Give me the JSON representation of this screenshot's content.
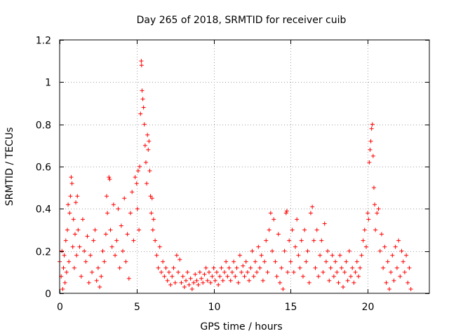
{
  "chart_data": {
    "type": "scatter",
    "title": "Day 265 of 2018, SRMTID for receiver cuib",
    "xlabel": "GPS time / hours",
    "ylabel": "SRMTID / TECUs",
    "xlim": [
      0,
      24
    ],
    "ylim": [
      0,
      1.2
    ],
    "xticks": [
      0,
      5,
      10,
      15,
      20
    ],
    "xtick_labels": [
      "0",
      "5",
      "10",
      "15",
      "20"
    ],
    "yticks": [
      0,
      0.2,
      0.4,
      0.6,
      0.8,
      1,
      1.2
    ],
    "ytick_labels": [
      "0",
      "0.2",
      "0.4",
      "0.6",
      "0.8",
      "1",
      "1.2"
    ],
    "grid": true,
    "marker": "+",
    "color": "#ff0000",
    "series": [
      {
        "name": "SRMTID",
        "points": [
          [
            0.0,
            0.15
          ],
          [
            0.1,
            0.08
          ],
          [
            0.15,
            0.2
          ],
          [
            0.2,
            0.02
          ],
          [
            0.25,
            0.12
          ],
          [
            0.3,
            0.18
          ],
          [
            0.35,
            0.05
          ],
          [
            0.4,
            0.25
          ],
          [
            0.45,
            0.1
          ],
          [
            0.5,
            0.3
          ],
          [
            0.55,
            0.42
          ],
          [
            0.6,
            0.15
          ],
          [
            0.65,
            0.38
          ],
          [
            0.7,
            0.46
          ],
          [
            0.75,
            0.55
          ],
          [
            0.8,
            0.52
          ],
          [
            0.85,
            0.22
          ],
          [
            0.9,
            0.35
          ],
          [
            0.95,
            0.12
          ],
          [
            1.0,
            0.28
          ],
          [
            1.05,
            0.43
          ],
          [
            1.1,
            0.18
          ],
          [
            1.15,
            0.46
          ],
          [
            1.2,
            0.3
          ],
          [
            1.3,
            0.22
          ],
          [
            1.4,
            0.08
          ],
          [
            1.5,
            0.35
          ],
          [
            1.6,
            0.2
          ],
          [
            1.7,
            0.15
          ],
          [
            1.8,
            0.27
          ],
          [
            1.9,
            0.05
          ],
          [
            2.0,
            0.18
          ],
          [
            2.1,
            0.1
          ],
          [
            2.2,
            0.25
          ],
          [
            2.3,
            0.3
          ],
          [
            2.4,
            0.06
          ],
          [
            2.5,
            0.12
          ],
          [
            2.6,
            0.03
          ],
          [
            2.7,
            0.08
          ],
          [
            2.8,
            0.2
          ],
          [
            2.9,
            0.15
          ],
          [
            3.0,
            0.28
          ],
          [
            3.05,
            0.46
          ],
          [
            3.1,
            0.38
          ],
          [
            3.2,
            0.55
          ],
          [
            3.25,
            0.54
          ],
          [
            3.3,
            0.3
          ],
          [
            3.4,
            0.22
          ],
          [
            3.5,
            0.42
          ],
          [
            3.6,
            0.18
          ],
          [
            3.7,
            0.25
          ],
          [
            3.8,
            0.4
          ],
          [
            3.9,
            0.12
          ],
          [
            4.0,
            0.32
          ],
          [
            4.1,
            0.2
          ],
          [
            4.2,
            0.45
          ],
          [
            4.3,
            0.15
          ],
          [
            4.4,
            0.28
          ],
          [
            4.5,
            0.07
          ],
          [
            4.6,
            0.38
          ],
          [
            4.7,
            0.48
          ],
          [
            4.8,
            0.25
          ],
          [
            4.9,
            0.55
          ],
          [
            5.0,
            0.52
          ],
          [
            5.05,
            0.4
          ],
          [
            5.1,
            0.58
          ],
          [
            5.15,
            0.3
          ],
          [
            5.2,
            0.6
          ],
          [
            5.25,
            0.85
          ],
          [
            5.3,
            1.1
          ],
          [
            5.32,
            1.08
          ],
          [
            5.35,
            0.96
          ],
          [
            5.4,
            0.92
          ],
          [
            5.45,
            0.88
          ],
          [
            5.5,
            0.8
          ],
          [
            5.55,
            0.7
          ],
          [
            5.6,
            0.62
          ],
          [
            5.65,
            0.52
          ],
          [
            5.7,
            0.75
          ],
          [
            5.75,
            0.68
          ],
          [
            5.8,
            0.72
          ],
          [
            5.85,
            0.58
          ],
          [
            5.9,
            0.46
          ],
          [
            5.95,
            0.38
          ],
          [
            6.0,
            0.45
          ],
          [
            6.05,
            0.3
          ],
          [
            6.1,
            0.35
          ],
          [
            6.2,
            0.25
          ],
          [
            6.3,
            0.18
          ],
          [
            6.4,
            0.12
          ],
          [
            6.5,
            0.22
          ],
          [
            6.6,
            0.1
          ],
          [
            6.7,
            0.15
          ],
          [
            6.8,
            0.08
          ],
          [
            6.9,
            0.12
          ],
          [
            7.0,
            0.06
          ],
          [
            7.1,
            0.1
          ],
          [
            7.2,
            0.04
          ],
          [
            7.3,
            0.08
          ],
          [
            7.4,
            0.12
          ],
          [
            7.5,
            0.05
          ],
          [
            7.6,
            0.18
          ],
          [
            7.7,
            0.1
          ],
          [
            7.8,
            0.16
          ],
          [
            7.9,
            0.05
          ],
          [
            8.0,
            0.08
          ],
          [
            8.1,
            0.03
          ],
          [
            8.2,
            0.06
          ],
          [
            8.3,
            0.1
          ],
          [
            8.4,
            0.04
          ],
          [
            8.5,
            0.07
          ],
          [
            8.6,
            0.02
          ],
          [
            8.7,
            0.05
          ],
          [
            8.8,
            0.09
          ],
          [
            8.9,
            0.06
          ],
          [
            9.0,
            0.04
          ],
          [
            9.1,
            0.1
          ],
          [
            9.2,
            0.07
          ],
          [
            9.3,
            0.05
          ],
          [
            9.4,
            0.09
          ],
          [
            9.5,
            0.12
          ],
          [
            9.6,
            0.06
          ],
          [
            9.7,
            0.1
          ],
          [
            9.8,
            0.05
          ],
          [
            9.9,
            0.08
          ],
          [
            10.0,
            0.12
          ],
          [
            10.1,
            0.06
          ],
          [
            10.2,
            0.1
          ],
          [
            10.3,
            0.04
          ],
          [
            10.4,
            0.08
          ],
          [
            10.5,
            0.12
          ],
          [
            10.6,
            0.06
          ],
          [
            10.7,
            0.1
          ],
          [
            10.8,
            0.15
          ],
          [
            10.9,
            0.08
          ],
          [
            11.0,
            0.12
          ],
          [
            11.1,
            0.06
          ],
          [
            11.2,
            0.1
          ],
          [
            11.3,
            0.15
          ],
          [
            11.4,
            0.08
          ],
          [
            11.5,
            0.12
          ],
          [
            11.6,
            0.05
          ],
          [
            11.7,
            0.18
          ],
          [
            11.8,
            0.1
          ],
          [
            11.9,
            0.13
          ],
          [
            12.0,
            0.08
          ],
          [
            12.1,
            0.15
          ],
          [
            12.2,
            0.1
          ],
          [
            12.3,
            0.06
          ],
          [
            12.4,
            0.12
          ],
          [
            12.5,
            0.2
          ],
          [
            12.6,
            0.08
          ],
          [
            12.7,
            0.15
          ],
          [
            12.8,
            0.1
          ],
          [
            12.9,
            0.22
          ],
          [
            13.0,
            0.12
          ],
          [
            13.1,
            0.18
          ],
          [
            13.2,
            0.06
          ],
          [
            13.3,
            0.15
          ],
          [
            13.4,
            0.25
          ],
          [
            13.5,
            0.1
          ],
          [
            13.6,
            0.3
          ],
          [
            13.7,
            0.38
          ],
          [
            13.8,
            0.2
          ],
          [
            13.9,
            0.35
          ],
          [
            14.0,
            0.15
          ],
          [
            14.1,
            0.08
          ],
          [
            14.2,
            0.28
          ],
          [
            14.3,
            0.05
          ],
          [
            14.4,
            0.12
          ],
          [
            14.5,
            0.02
          ],
          [
            14.6,
            0.2
          ],
          [
            14.7,
            0.38
          ],
          [
            14.75,
            0.39
          ],
          [
            14.8,
            0.1
          ],
          [
            14.9,
            0.25
          ],
          [
            15.0,
            0.15
          ],
          [
            15.1,
            0.3
          ],
          [
            15.2,
            0.1
          ],
          [
            15.3,
            0.22
          ],
          [
            15.4,
            0.35
          ],
          [
            15.5,
            0.18
          ],
          [
            15.6,
            0.12
          ],
          [
            15.7,
            0.25
          ],
          [
            15.8,
            0.08
          ],
          [
            15.9,
            0.3
          ],
          [
            16.0,
            0.15
          ],
          [
            16.1,
            0.2
          ],
          [
            16.2,
            0.05
          ],
          [
            16.3,
            0.38
          ],
          [
            16.4,
            0.41
          ],
          [
            16.5,
            0.25
          ],
          [
            16.6,
            0.12
          ],
          [
            16.7,
            0.3
          ],
          [
            16.8,
            0.08
          ],
          [
            16.9,
            0.18
          ],
          [
            17.0,
            0.25
          ],
          [
            17.1,
            0.1
          ],
          [
            17.2,
            0.33
          ],
          [
            17.3,
            0.15
          ],
          [
            17.4,
            0.2
          ],
          [
            17.5,
            0.06
          ],
          [
            17.6,
            0.12
          ],
          [
            17.7,
            0.18
          ],
          [
            17.8,
            0.08
          ],
          [
            17.9,
            0.15
          ],
          [
            18.0,
            0.1
          ],
          [
            18.1,
            0.05
          ],
          [
            18.2,
            0.18
          ],
          [
            18.3,
            0.12
          ],
          [
            18.4,
            0.03
          ],
          [
            18.5,
            0.1
          ],
          [
            18.6,
            0.15
          ],
          [
            18.7,
            0.06
          ],
          [
            18.8,
            0.2
          ],
          [
            18.9,
            0.08
          ],
          [
            19.0,
            0.12
          ],
          [
            19.1,
            0.05
          ],
          [
            19.2,
            0.1
          ],
          [
            19.3,
            0.15
          ],
          [
            19.4,
            0.08
          ],
          [
            19.5,
            0.12
          ],
          [
            19.6,
            0.18
          ],
          [
            19.7,
            0.25
          ],
          [
            19.8,
            0.3
          ],
          [
            19.9,
            0.22
          ],
          [
            20.0,
            0.38
          ],
          [
            20.05,
            0.35
          ],
          [
            20.1,
            0.62
          ],
          [
            20.15,
            0.68
          ],
          [
            20.2,
            0.72
          ],
          [
            20.25,
            0.78
          ],
          [
            20.3,
            0.8
          ],
          [
            20.35,
            0.65
          ],
          [
            20.4,
            0.5
          ],
          [
            20.45,
            0.42
          ],
          [
            20.5,
            0.3
          ],
          [
            20.6,
            0.38
          ],
          [
            20.7,
            0.4
          ],
          [
            20.8,
            0.2
          ],
          [
            20.9,
            0.28
          ],
          [
            21.0,
            0.12
          ],
          [
            21.1,
            0.22
          ],
          [
            21.2,
            0.05
          ],
          [
            21.3,
            0.15
          ],
          [
            21.4,
            0.02
          ],
          [
            21.5,
            0.1
          ],
          [
            21.6,
            0.18
          ],
          [
            21.7,
            0.06
          ],
          [
            21.8,
            0.22
          ],
          [
            21.9,
            0.12
          ],
          [
            22.0,
            0.25
          ],
          [
            22.1,
            0.08
          ],
          [
            22.2,
            0.2
          ],
          [
            22.3,
            0.15
          ],
          [
            22.4,
            0.1
          ],
          [
            22.5,
            0.18
          ],
          [
            22.6,
            0.05
          ],
          [
            22.7,
            0.12
          ],
          [
            22.8,
            0.02
          ]
        ]
      }
    ]
  }
}
